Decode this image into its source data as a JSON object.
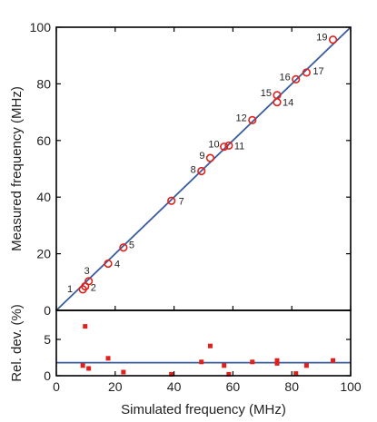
{
  "chart_data": [
    {
      "type": "scatter",
      "xlabel": "",
      "ylabel": "Measured frequency (MHz)",
      "xlim": [
        0,
        100
      ],
      "ylim": [
        0,
        100
      ],
      "xticks": [
        "0",
        "20",
        "40",
        "60",
        "80",
        "100"
      ],
      "yticks": [
        "0",
        "20",
        "40",
        "60",
        "80",
        "100"
      ],
      "fit_line": {
        "x": [
          0,
          100
        ],
        "y": [
          0,
          100
        ],
        "color": "#3a5c9c"
      },
      "marker": {
        "shape": "open-circle",
        "color": "#e0201b"
      },
      "points": [
        {
          "label": "1",
          "x": 9.0,
          "y": 7.4
        },
        {
          "label": "2",
          "x": 9.8,
          "y": 8.5
        },
        {
          "label": "3",
          "x": 11.0,
          "y": 10.3
        },
        {
          "label": "4",
          "x": 17.6,
          "y": 16.5
        },
        {
          "label": "5",
          "x": 22.8,
          "y": 22.2
        },
        {
          "label": "7",
          "x": 39.1,
          "y": 38.7
        },
        {
          "label": "8",
          "x": 49.3,
          "y": 49.2
        },
        {
          "label": "9",
          "x": 52.3,
          "y": 53.8
        },
        {
          "label": "10",
          "x": 57.0,
          "y": 57.8
        },
        {
          "label": "11",
          "x": 58.6,
          "y": 58.2
        },
        {
          "label": "12",
          "x": 66.6,
          "y": 67.2
        },
        {
          "label": "14",
          "x": 75.0,
          "y": 73.5
        },
        {
          "label": "15",
          "x": 75.0,
          "y": 76.0
        },
        {
          "label": "16",
          "x": 81.4,
          "y": 81.6
        },
        {
          "label": "17",
          "x": 85.0,
          "y": 84.0
        },
        {
          "label": "19",
          "x": 94.0,
          "y": 95.6
        }
      ]
    },
    {
      "type": "scatter",
      "xlabel": "Simulated frequency (MHz)",
      "ylabel": "Rel. dev. (%)",
      "xlim": [
        0,
        100
      ],
      "ylim": [
        0,
        9
      ],
      "xticks": [
        "0",
        "20",
        "40",
        "60",
        "80",
        "100"
      ],
      "yticks": [
        "0",
        "5"
      ],
      "mean_line": {
        "y": 1.8,
        "color": "#3a5c9c"
      },
      "marker": {
        "shape": "filled-square",
        "color": "#e0201b"
      },
      "points": [
        {
          "x": 9.0,
          "y": 1.4
        },
        {
          "x": 9.8,
          "y": 6.8
        },
        {
          "x": 11.0,
          "y": 1.0
        },
        {
          "x": 17.6,
          "y": 2.4
        },
        {
          "x": 22.8,
          "y": 0.5
        },
        {
          "x": 39.1,
          "y": 0.2
        },
        {
          "x": 49.3,
          "y": 1.9
        },
        {
          "x": 52.3,
          "y": 4.1
        },
        {
          "x": 57.0,
          "y": 1.4
        },
        {
          "x": 58.6,
          "y": 0.2
        },
        {
          "x": 66.6,
          "y": 1.9
        },
        {
          "x": 75.0,
          "y": 1.7
        },
        {
          "x": 75.0,
          "y": 2.1
        },
        {
          "x": 81.4,
          "y": 0.3
        },
        {
          "x": 85.0,
          "y": 1.4
        },
        {
          "x": 94.0,
          "y": 2.1
        }
      ]
    }
  ]
}
